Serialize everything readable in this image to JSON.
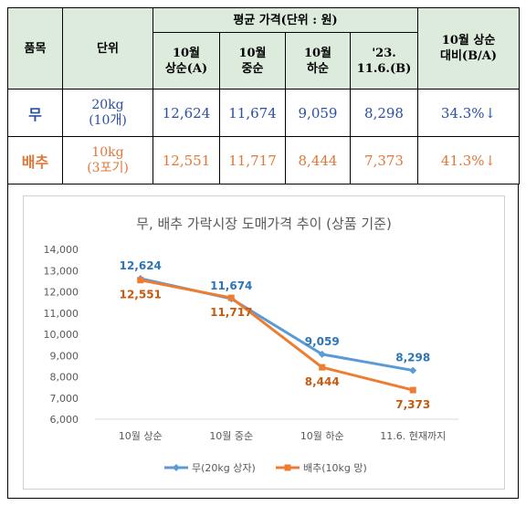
{
  "table": {
    "header": {
      "item": "품목",
      "unit": "단위",
      "avg_price": "평균 가격(단위 : 원)",
      "cols": [
        {
          "line1": "10월",
          "line2": "상순(A)"
        },
        {
          "line1": "10월",
          "line2": "중순"
        },
        {
          "line1": "10월",
          "line2": "하순"
        },
        {
          "line1": "'23.",
          "line2": "11.6.(B)"
        }
      ],
      "vs": {
        "line1": "10월 상순",
        "line2": "대비(B/A)"
      }
    },
    "rows": [
      {
        "item": "무",
        "unit1": "20kg",
        "unit2": "(10개)",
        "values": [
          "12,624",
          "11,674",
          "9,059",
          "8,298"
        ],
        "change": "34.3%↓",
        "color": "#2a4fa3"
      },
      {
        "item": "배추",
        "unit1": "10kg",
        "unit2": "(3포기)",
        "values": [
          "12,551",
          "11,717",
          "8,444",
          "7,373"
        ],
        "change": "41.3%↓",
        "color": "#e07838"
      }
    ]
  },
  "chart_data": {
    "type": "line",
    "title": "무, 배추 가락시장 도매가격 추이 (상품 기준)",
    "categories": [
      "10월 상순",
      "10월 중순",
      "10월 하순",
      "11.6. 현재까지"
    ],
    "ylim": [
      6000,
      14000
    ],
    "yticks": [
      "6,000",
      "7,000",
      "8,000",
      "9,000",
      "10,000",
      "11,000",
      "12,000",
      "13,000",
      "14,000"
    ],
    "grid": false,
    "legend": "bottom",
    "series": [
      {
        "name": "무(20kg 상자)",
        "values": [
          12624,
          11674,
          9059,
          8298
        ],
        "labels": [
          "12,624",
          "11,674",
          "9,059",
          "8,298"
        ],
        "color": "#5b9bd5",
        "label_color": "#2e75b6",
        "label_pos": "above",
        "marker": "diamond"
      },
      {
        "name": "배추(10kg 망)",
        "values": [
          12551,
          11717,
          8444,
          7373
        ],
        "labels": [
          "12,551",
          "11,717",
          "8,444",
          "7,373"
        ],
        "color": "#ed7d31",
        "label_color": "#c55a11",
        "label_pos": "below",
        "marker": "square"
      }
    ]
  }
}
